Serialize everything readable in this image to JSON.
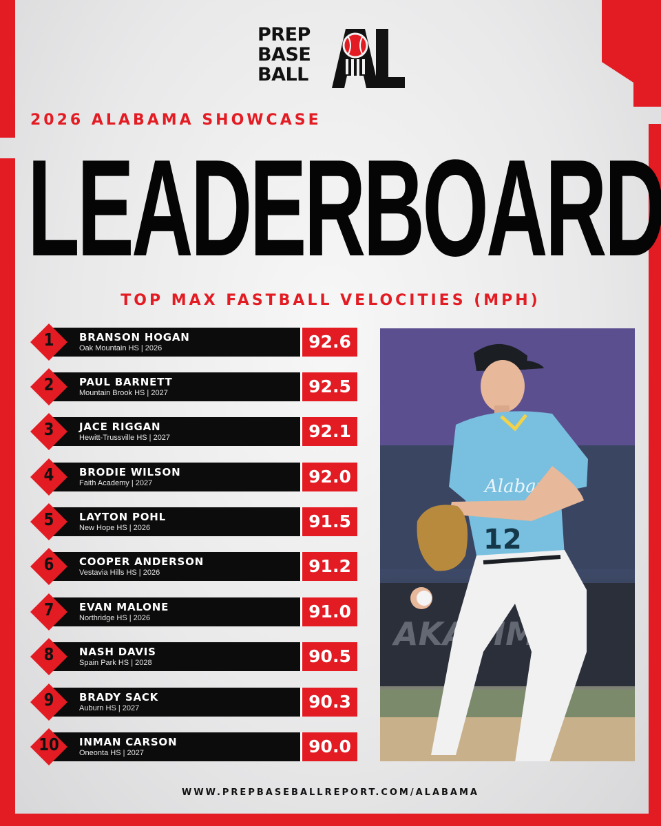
{
  "brand": {
    "logo_lines": [
      "PREP",
      "BASE",
      "BALL"
    ],
    "logo_mark_letters": "AL",
    "colors": {
      "accent": "#e31b23",
      "dark": "#0c0c0c",
      "background": "#ececed"
    }
  },
  "header": {
    "event": "2026 ALABAMA SHOWCASE",
    "title": "LEADERBOARD",
    "metric": "TOP MAX FASTBALL VELOCITIES (MPH)"
  },
  "leaderboard": [
    {
      "rank": "1",
      "name": "BRANSON HOGAN",
      "meta": "Oak Mountain HS | 2026",
      "value": "92.6"
    },
    {
      "rank": "2",
      "name": "PAUL BARNETT",
      "meta": "Mountain Brook HS | 2027",
      "value": "92.5"
    },
    {
      "rank": "3",
      "name": "JACE RIGGAN",
      "meta": "Hewitt-Trussville HS | 2027",
      "value": "92.1"
    },
    {
      "rank": "4",
      "name": "BRODIE WILSON",
      "meta": "Faith Academy | 2027",
      "value": "92.0"
    },
    {
      "rank": "5",
      "name": "LAYTON POHL",
      "meta": "New Hope HS | 2026",
      "value": "91.5"
    },
    {
      "rank": "6",
      "name": "COOPER ANDERSON",
      "meta": "Vestavia Hills HS | 2026",
      "value": "91.2"
    },
    {
      "rank": "7",
      "name": "EVAN MALONE",
      "meta": "Northridge HS | 2026",
      "value": "91.0"
    },
    {
      "rank": "8",
      "name": "NASH DAVIS",
      "meta": "Spain Park HS | 2028",
      "value": "90.5"
    },
    {
      "rank": "9",
      "name": "BRADY SACK",
      "meta": "Auburn HS | 2027",
      "value": "90.3"
    },
    {
      "rank": "10",
      "name": "INMAN CARSON",
      "meta": "Oneonta HS | 2027",
      "value": "90.0"
    }
  ],
  "photo": {
    "jersey_number": "12",
    "jersey_script": "Alabama"
  },
  "footer": {
    "url": "WWW.PREPBASEBALLREPORT.COM/ALABAMA"
  }
}
